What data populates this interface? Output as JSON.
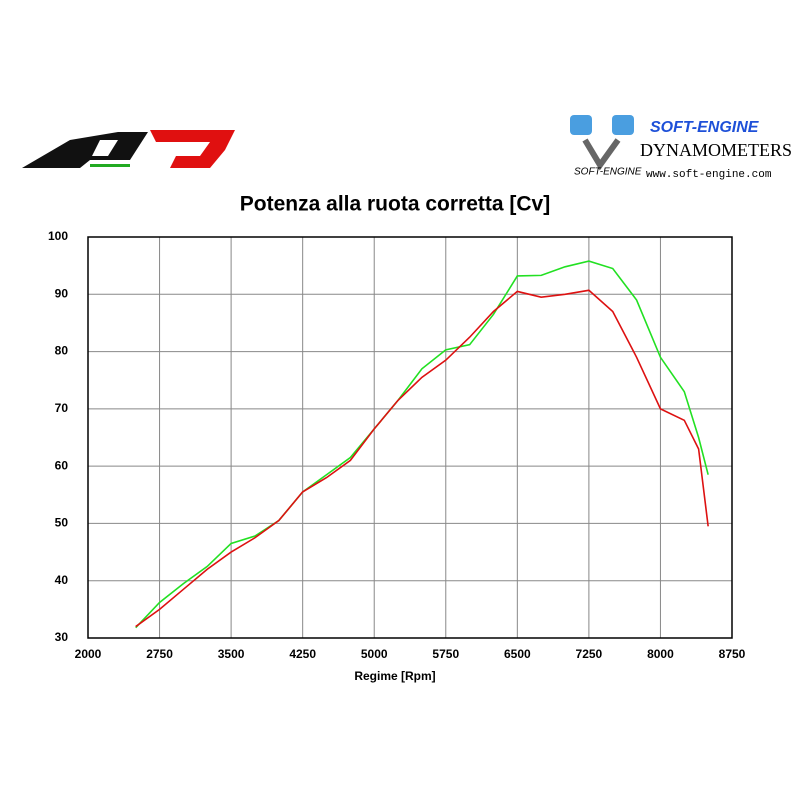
{
  "chart_data": {
    "type": "line",
    "title": "Potenza alla ruota corretta [Cv]",
    "x_label": "Regime [Rpm]",
    "x": [
      2500,
      2750,
      3000,
      3250,
      3500,
      3750,
      4000,
      4250,
      4500,
      4750,
      5000,
      5250,
      5500,
      5750,
      6000,
      6250,
      6500,
      6750,
      7000,
      7250,
      7500,
      7750,
      8000,
      8250,
      8400,
      8500
    ],
    "series": [
      {
        "color": "#22e022",
        "values": [
          31.8,
          36.2,
          39.5,
          42.5,
          46.5,
          47.8,
          50.5,
          55.5,
          58.5,
          61.5,
          66.5,
          71.5,
          77,
          80.3,
          81.2,
          86.5,
          93.2,
          93.3,
          94.8,
          95.8,
          94.5,
          89,
          79,
          73,
          65,
          58.5
        ]
      },
      {
        "color": "#dd1111",
        "values": [
          32.0,
          35,
          38.5,
          42,
          45,
          47.5,
          50.5,
          55.5,
          58,
          61,
          66.5,
          71.5,
          75.5,
          78.5,
          82.5,
          87,
          90.5,
          89.5,
          90,
          90.7,
          87,
          79,
          70,
          68,
          63,
          49.5
        ]
      }
    ],
    "xlim": [
      2000,
      8750
    ],
    "xticks": [
      2000,
      2750,
      3500,
      4250,
      5000,
      5750,
      6500,
      7250,
      8000,
      8750
    ],
    "ylim": [
      30,
      100
    ],
    "yticks": [
      30,
      40,
      50,
      60,
      70,
      80,
      90,
      100
    ],
    "grid": true
  },
  "logos": {
    "brand": "SOFT-ENGINE",
    "product": "DYNAMOMETERS",
    "sub": "SOFT-ENGINE",
    "url": "www.soft-engine.com"
  }
}
